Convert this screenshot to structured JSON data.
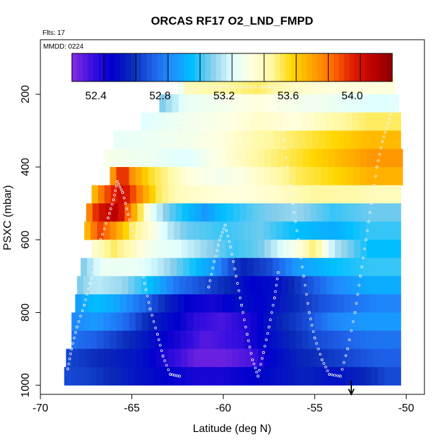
{
  "chart_data": {
    "type": "heatmap",
    "title": "ORCAS RF17 O2_LND_FMPD",
    "flights_note": "Flts: 17",
    "date_note": "MMDD: 0224",
    "xlabel": "Latitude (deg N)",
    "ylabel": "PSXC (mbar)",
    "xlim": [
      -70,
      -49
    ],
    "ylim_reversed": [
      1025,
      50
    ],
    "x_ticks": [
      -70,
      -65,
      -60,
      -55,
      -50
    ],
    "x_tick_labels": [
      "-70",
      "-65",
      "-60",
      "-55",
      "-50"
    ],
    "y_ticks": [
      200,
      400,
      600,
      800,
      1000
    ],
    "y_tick_labels": [
      "200",
      "400",
      "600",
      "800",
      "1000"
    ],
    "colorbar": {
      "min": 52.25,
      "max": 54.25,
      "tick_values": [
        52.4,
        52.8,
        53.2,
        53.6,
        54.0
      ],
      "tick_labels": [
        "52.4",
        "52.8",
        "53.2",
        "53.6",
        "54.0"
      ],
      "colors": [
        "#8a2be2",
        "#3a10e0",
        "#0000cd",
        "#0a2ab8",
        "#1e5fe8",
        "#1e90ff",
        "#00bfff",
        "#87ceeb",
        "#e0ffff",
        "#ffffe0",
        "#fff8a0",
        "#ffd700",
        "#ffa500",
        "#ff6a00",
        "#e02000",
        "#c00000",
        "#8b0000"
      ]
    },
    "layers": [
      {
        "p": 175,
        "x0": -62.5,
        "x1": -50.6,
        "segs": [
          [
            -62.5,
            53.2
          ],
          [
            -62.1,
            53.45
          ],
          [
            -60.0,
            53.5
          ],
          [
            -58.0,
            53.55
          ],
          [
            -56.0,
            53.42
          ],
          [
            -54.0,
            53.38
          ]
        ]
      },
      {
        "p": 225,
        "x0": -63.5,
        "x1": -50.4,
        "segs": [
          [
            -63.5,
            53.1
          ],
          [
            -62.0,
            53.28
          ],
          [
            -60.0,
            53.33
          ],
          [
            -58.0,
            53.38
          ],
          [
            -56.0,
            53.33
          ],
          [
            -54.0,
            53.3
          ],
          [
            -52.0,
            53.25
          ]
        ]
      },
      {
        "p": 275,
        "x0": -64.5,
        "x1": -50.3,
        "segs": [
          [
            -64.5,
            53.25
          ],
          [
            -62.0,
            53.32
          ],
          [
            -60.0,
            53.36
          ],
          [
            -58.0,
            53.42
          ],
          [
            -56.0,
            53.38
          ],
          [
            -54.0,
            53.48
          ],
          [
            -52.0,
            53.55
          ]
        ]
      },
      {
        "p": 325,
        "x0": -66.0,
        "x1": -50.3,
        "segs": [
          [
            -66.0,
            53.28
          ],
          [
            -64.0,
            53.3
          ],
          [
            -62.0,
            53.33
          ],
          [
            -60.0,
            53.38
          ],
          [
            -58.0,
            53.48
          ],
          [
            -56.0,
            53.55
          ],
          [
            -54.0,
            53.62
          ],
          [
            -52.0,
            53.7
          ]
        ]
      },
      {
        "p": 375,
        "x0": -66.5,
        "x1": -50.2,
        "segs": [
          [
            -66.5,
            53.35
          ],
          [
            -64.0,
            53.3
          ],
          [
            -62.0,
            53.25
          ],
          [
            -60.0,
            53.38
          ],
          [
            -58.0,
            53.5
          ],
          [
            -56.0,
            53.58
          ],
          [
            -54.0,
            53.68
          ],
          [
            -52.0,
            53.78
          ]
        ]
      },
      {
        "p": 425,
        "x0": -66.2,
        "x1": -50.2,
        "segs": [
          [
            -66.2,
            53.7
          ],
          [
            -65.5,
            54.05
          ],
          [
            -65.0,
            53.8
          ],
          [
            -64.0,
            53.6
          ],
          [
            -63.0,
            53.5
          ],
          [
            -62.0,
            53.38
          ],
          [
            -60.0,
            53.32
          ],
          [
            -58.0,
            53.42
          ],
          [
            -56.0,
            53.55
          ],
          [
            -54.0,
            53.62
          ],
          [
            -52.0,
            53.72
          ]
        ]
      },
      {
        "p": 475,
        "x0": -67.2,
        "x1": -50.3,
        "segs": [
          [
            -67.2,
            53.65
          ],
          [
            -66.5,
            53.9
          ],
          [
            -65.5,
            54.1
          ],
          [
            -64.5,
            53.8
          ],
          [
            -63.5,
            53.55
          ],
          [
            -62.5,
            53.45
          ],
          [
            -61.0,
            53.4
          ],
          [
            -59.0,
            53.38
          ],
          [
            -57.0,
            53.42
          ],
          [
            -55.0,
            53.5
          ],
          [
            -53.0,
            53.48
          ],
          [
            -51.5,
            53.45
          ]
        ]
      },
      {
        "p": 525,
        "x0": -67.5,
        "x1": -50.3,
        "segs": [
          [
            -67.5,
            53.75
          ],
          [
            -66.8,
            54.05
          ],
          [
            -65.8,
            54.15
          ],
          [
            -64.8,
            53.7
          ],
          [
            -64.0,
            53.3
          ],
          [
            -63.0,
            53.1
          ],
          [
            -62.0,
            53.0
          ],
          [
            -61.0,
            52.9
          ],
          [
            -60.0,
            53.0
          ],
          [
            -58.0,
            53.1
          ],
          [
            -56.0,
            53.15
          ],
          [
            -54.0,
            53.05
          ],
          [
            -52.0,
            53.1
          ]
        ]
      },
      {
        "p": 575,
        "x0": -67.6,
        "x1": -50.3,
        "segs": [
          [
            -67.6,
            53.65
          ],
          [
            -66.8,
            53.95
          ],
          [
            -65.8,
            53.75
          ],
          [
            -65.0,
            53.55
          ],
          [
            -64.0,
            53.4
          ],
          [
            -63.0,
            53.2
          ],
          [
            -62.0,
            53.1
          ],
          [
            -60.0,
            53.05
          ],
          [
            -58.0,
            53.1
          ],
          [
            -56.0,
            53.0
          ],
          [
            -54.0,
            52.95
          ],
          [
            -52.0,
            53.05
          ]
        ]
      },
      {
        "p": 625,
        "x0": -67.2,
        "x1": -50.3,
        "segs": [
          [
            -67.2,
            53.4
          ],
          [
            -66.0,
            53.55
          ],
          [
            -65.0,
            53.45
          ],
          [
            -64.0,
            53.32
          ],
          [
            -62.5,
            53.25
          ],
          [
            -61.0,
            53.15
          ],
          [
            -59.5,
            53.05
          ],
          [
            -58.0,
            53.1
          ],
          [
            -56.0,
            53.35
          ],
          [
            -55.0,
            53.55
          ],
          [
            -54.0,
            53.2
          ],
          [
            -52.0,
            53.0
          ]
        ]
      },
      {
        "p": 675,
        "x0": -67.8,
        "x1": -50.3,
        "segs": [
          [
            -67.8,
            53.1
          ],
          [
            -66.5,
            53.3
          ],
          [
            -65.0,
            53.3
          ],
          [
            -63.5,
            53.2
          ],
          [
            -62.0,
            53.05
          ],
          [
            -60.5,
            52.9
          ],
          [
            -59.0,
            52.6
          ],
          [
            -57.5,
            52.7
          ],
          [
            -56.0,
            52.9
          ],
          [
            -54.0,
            53.0
          ],
          [
            -52.0,
            53.05
          ]
        ]
      },
      {
        "p": 725,
        "x0": -68.0,
        "x1": -50.3,
        "segs": [
          [
            -68.0,
            53.1
          ],
          [
            -67.0,
            53.2
          ],
          [
            -65.5,
            53.15
          ],
          [
            -64.0,
            53.0
          ],
          [
            -62.5,
            52.8
          ],
          [
            -61.0,
            52.7
          ],
          [
            -59.5,
            52.6
          ],
          [
            -58.5,
            52.5
          ],
          [
            -57.0,
            52.55
          ],
          [
            -55.5,
            52.7
          ],
          [
            -54.0,
            52.85
          ],
          [
            -52.0,
            52.95
          ]
        ]
      },
      {
        "p": 775,
        "x0": -68.1,
        "x1": -50.3,
        "segs": [
          [
            -68.1,
            52.9
          ],
          [
            -67.0,
            53.0
          ],
          [
            -66.0,
            52.95
          ],
          [
            -64.5,
            52.8
          ],
          [
            -63.0,
            52.6
          ],
          [
            -62.0,
            52.5
          ],
          [
            -60.5,
            52.45
          ],
          [
            -59.0,
            52.55
          ],
          [
            -58.0,
            52.5
          ],
          [
            -56.5,
            52.6
          ],
          [
            -55.0,
            52.7
          ],
          [
            -53.0,
            52.8
          ],
          [
            -51.5,
            52.85
          ]
        ]
      },
      {
        "p": 825,
        "x0": -68.3,
        "x1": -50.3,
        "segs": [
          [
            -68.3,
            52.85
          ],
          [
            -67.0,
            52.9
          ],
          [
            -65.5,
            52.8
          ],
          [
            -64.0,
            52.6
          ],
          [
            -62.5,
            52.5
          ],
          [
            -61.5,
            52.4
          ],
          [
            -60.0,
            52.35
          ],
          [
            -58.5,
            52.45
          ],
          [
            -57.0,
            52.6
          ],
          [
            -55.5,
            52.7
          ],
          [
            -54.0,
            52.85
          ],
          [
            -52.0,
            52.9
          ]
        ]
      },
      {
        "p": 875,
        "x0": -68.3,
        "x1": -50.3,
        "segs": [
          [
            -68.3,
            52.8
          ],
          [
            -67.0,
            52.75
          ],
          [
            -65.5,
            52.65
          ],
          [
            -64.0,
            52.55
          ],
          [
            -62.5,
            52.45
          ],
          [
            -61.0,
            52.33
          ],
          [
            -59.0,
            52.4
          ],
          [
            -58.0,
            52.5
          ],
          [
            -56.5,
            52.6
          ],
          [
            -55.0,
            52.7
          ],
          [
            -53.5,
            52.75
          ],
          [
            -52.0,
            52.8
          ]
        ]
      },
      {
        "p": 925,
        "x0": -68.6,
        "x1": -50.3,
        "segs": [
          [
            -68.6,
            52.7
          ],
          [
            -67.5,
            52.65
          ],
          [
            -66.0,
            52.6
          ],
          [
            -64.5,
            52.55
          ],
          [
            -63.0,
            52.42
          ],
          [
            -61.5,
            52.3
          ],
          [
            -60.0,
            52.3
          ],
          [
            -58.5,
            52.35
          ],
          [
            -57.5,
            52.5
          ],
          [
            -56.0,
            52.6
          ],
          [
            -54.5,
            52.65
          ],
          [
            -53.0,
            52.7
          ],
          [
            -51.5,
            52.75
          ]
        ]
      },
      {
        "p": 975,
        "x0": -68.7,
        "x1": -50.3,
        "segs": [
          [
            -68.7,
            52.7
          ],
          [
            -67.5,
            52.68
          ],
          [
            -66.0,
            52.62
          ],
          [
            -64.5,
            52.55
          ],
          [
            -63.0,
            52.5
          ],
          [
            -61.5,
            52.45
          ],
          [
            -60.0,
            52.45
          ],
          [
            -58.5,
            52.5
          ],
          [
            -57.0,
            52.55
          ],
          [
            -55.5,
            52.6
          ],
          [
            -54.0,
            52.55
          ],
          [
            -52.5,
            52.6
          ],
          [
            -51.0,
            52.7
          ]
        ]
      }
    ],
    "flight_track": [
      [
        -68.5,
        955
      ],
      [
        -68.3,
        900
      ],
      [
        -68.0,
        840
      ],
      [
        -67.6,
        780
      ],
      [
        -67.3,
        720
      ],
      [
        -67.0,
        660
      ],
      [
        -66.7,
        600
      ],
      [
        -66.3,
        540
      ],
      [
        -66.0,
        490
      ],
      [
        -65.8,
        440
      ],
      [
        -65.5,
        470
      ],
      [
        -65.2,
        530
      ],
      [
        -64.9,
        590
      ],
      [
        -64.6,
        650
      ],
      [
        -64.3,
        720
      ],
      [
        -64.0,
        790
      ],
      [
        -63.6,
        860
      ],
      [
        -63.3,
        920
      ],
      [
        -62.9,
        970
      ],
      [
        -62.4,
        975
      ],
      [
        -62.3,
        300
      ],
      [
        -62.2,
        240
      ],
      [
        -62.0,
        190
      ],
      [
        -61.0,
        180
      ],
      [
        -60.0,
        180
      ],
      [
        -59.0,
        180
      ],
      [
        -58.0,
        180
      ],
      [
        -57.3,
        180
      ],
      [
        -57.0,
        220
      ],
      [
        -56.8,
        300
      ],
      [
        -56.5,
        400
      ],
      [
        -56.2,
        500
      ],
      [
        -55.9,
        600
      ],
      [
        -55.6,
        700
      ],
      [
        -55.3,
        800
      ],
      [
        -55.0,
        870
      ],
      [
        -54.6,
        930
      ],
      [
        -54.2,
        970
      ],
      [
        -53.6,
        975
      ],
      [
        -53.2,
        900
      ],
      [
        -52.8,
        800
      ],
      [
        -52.5,
        700
      ],
      [
        -52.2,
        600
      ],
      [
        -51.9,
        500
      ],
      [
        -51.6,
        400
      ],
      [
        -51.3,
        330
      ],
      [
        -51.0,
        280
      ],
      [
        -50.7,
        230
      ],
      [
        -50.5,
        210
      ],
      [
        -60.8,
        730
      ],
      [
        -60.5,
        660
      ],
      [
        -60.2,
        600
      ],
      [
        -59.9,
        560
      ],
      [
        -59.6,
        620
      ],
      [
        -59.3,
        700
      ],
      [
        -59.0,
        780
      ],
      [
        -58.7,
        860
      ],
      [
        -58.4,
        930
      ],
      [
        -58.1,
        975
      ],
      [
        -57.8,
        910
      ],
      [
        -57.5,
        840
      ],
      [
        -57.2,
        760
      ],
      [
        -57.0,
        690
      ]
    ],
    "arrow_marker": {
      "x": -53.0,
      "label": ""
    }
  }
}
